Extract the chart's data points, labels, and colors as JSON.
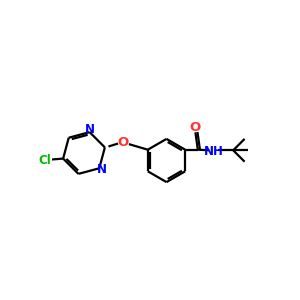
{
  "bg_color": "#ffffff",
  "bond_color": "#000000",
  "N_color": "#0000ff",
  "O_color": "#ff3333",
  "Cl_color": "#00bb00",
  "line_width": 1.6,
  "figsize": [
    3.0,
    3.0
  ],
  "dpi": 100,
  "xlim": [
    0,
    10
  ],
  "ylim": [
    2,
    8
  ]
}
